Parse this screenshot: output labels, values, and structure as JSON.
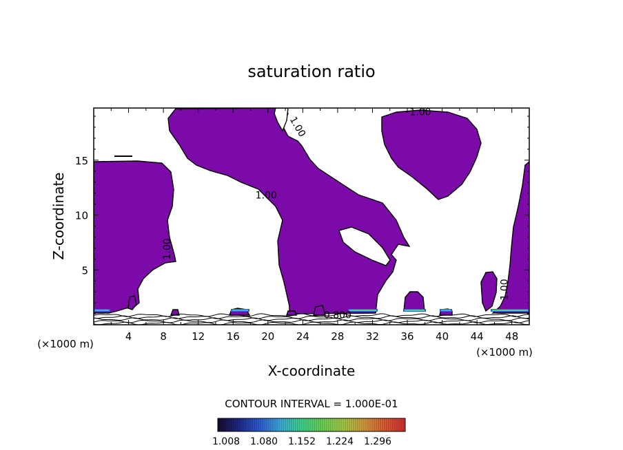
{
  "chart_data": {
    "type": "contour",
    "title": "saturation ratio",
    "xlabel": "X-coordinate",
    "ylabel": "Z-coordinate",
    "x_unit": "(×1000 m)",
    "xlim": [
      0,
      50
    ],
    "ylim": [
      0,
      19.75
    ],
    "x_ticks": [
      4,
      8,
      12,
      16,
      20,
      24,
      28,
      32,
      36,
      40,
      44,
      48
    ],
    "y_ticks": [
      5,
      10,
      15
    ],
    "contour_interval_text": "CONTOUR INTERVAL = 1.000E-01",
    "contour_labels": [
      {
        "text": "1.00",
        "x": 37.5,
        "z": 19.1
      },
      {
        "text": "1.00",
        "x": 23.1,
        "z": 17.9
      },
      {
        "text": "1.00",
        "x": 19.8,
        "z": 11.5
      },
      {
        "text": "1.00",
        "x": 8.8,
        "z": 6.9
      },
      {
        "text": "1.00",
        "x": 47.5,
        "z": 3.2
      },
      {
        "text": "0.800",
        "x": 28.0,
        "z": 0.6
      }
    ],
    "colorbar": {
      "tick_labels": [
        "1.008",
        "1.080",
        "1.152",
        "1.224",
        "1.296"
      ],
      "colors": [
        "#1a0b2e",
        "#1f2a8a",
        "#2f5fd8",
        "#3fb0e0",
        "#40d890",
        "#6cd85a",
        "#a8d048",
        "#d8a040",
        "#e06038",
        "#d83030"
      ]
    },
    "fill_color": "#7b0aa8"
  }
}
